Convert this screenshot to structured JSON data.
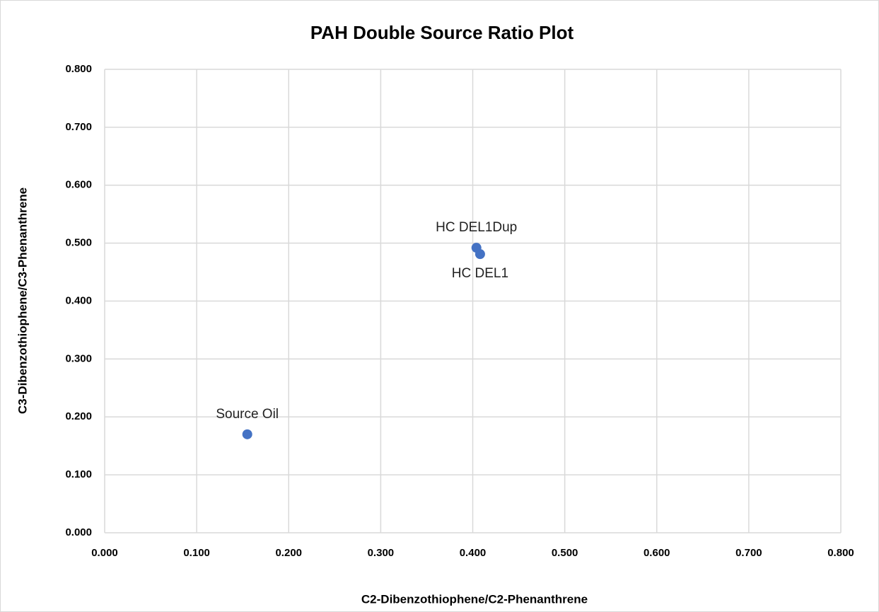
{
  "chart_data": {
    "type": "scatter",
    "title": "PAH Double Source Ratio Plot",
    "x_label": "C2-Dibenzothiophene/C2-Phenanthrene",
    "y_label": "C3-Dibenzothiophene/C3-Phenanthrene",
    "xlim": [
      0,
      0.8
    ],
    "ylim": [
      0,
      0.8
    ],
    "xticks": [
      {
        "value": 0,
        "label": "0.000"
      },
      {
        "value": 0.1,
        "label": "0.100"
      },
      {
        "value": 0.2,
        "label": "0.200"
      },
      {
        "value": 0.3,
        "label": "0.300"
      },
      {
        "value": 0.4,
        "label": "0.400"
      },
      {
        "value": 0.5,
        "label": "0.500"
      },
      {
        "value": 0.6,
        "label": "0.600"
      },
      {
        "value": 0.7,
        "label": "0.700"
      },
      {
        "value": 0.8,
        "label": "0.800"
      }
    ],
    "yticks": [
      {
        "value": 0,
        "label": "0.000"
      },
      {
        "value": 0.1,
        "label": "0.100"
      },
      {
        "value": 0.2,
        "label": "0.200"
      },
      {
        "value": 0.3,
        "label": "0.300"
      },
      {
        "value": 0.4,
        "label": "0.400"
      },
      {
        "value": 0.5,
        "label": "0.500"
      },
      {
        "value": 0.6,
        "label": "0.600"
      },
      {
        "value": 0.7,
        "label": "0.700"
      },
      {
        "value": 0.8,
        "label": "0.800"
      }
    ],
    "grid": true,
    "color": "#4472c4",
    "x": [
      0.155,
      0.404,
      0.408
    ],
    "values": [
      0.17,
      0.492,
      0.481
    ],
    "point_labels": [
      "Source Oil",
      "HC DEL1Dup",
      "HC DEL1"
    ]
  }
}
